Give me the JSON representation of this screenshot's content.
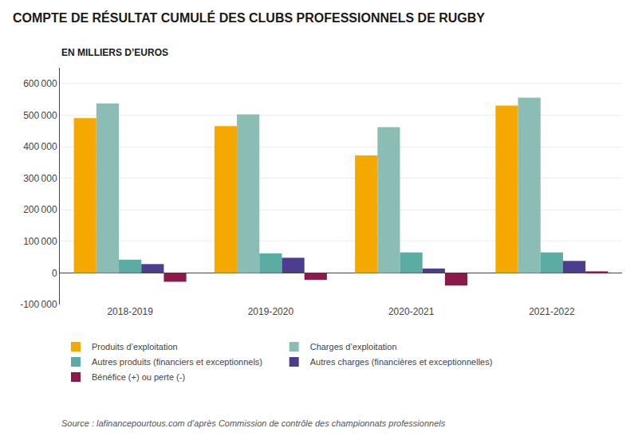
{
  "chart_data": {
    "type": "bar",
    "title": "COMPTE DE RÉSULTAT CUMULÉ DES CLUBS PROFESSIONNELS DE RUGBY",
    "subtitle": "EN MILLIERS D’EUROS",
    "annotations": [
      "Source : lafinancepourtous.com d’après Commission de contrôle des championnats professionnels"
    ],
    "categories": [
      "2018-2019",
      "2019-2020",
      "2020-2021",
      "2021-2022"
    ],
    "series": [
      {
        "name": "Produits d’exploitation",
        "color": "#F5A800",
        "values": [
          490000,
          465000,
          372000,
          530000
        ]
      },
      {
        "name": "Charges d’exploitation",
        "color": "#8CBDB5",
        "values": [
          537000,
          502000,
          462000,
          555000
        ]
      },
      {
        "name": "Autres produits (financiers et exceptionnels)",
        "color": "#5BADA3",
        "values": [
          42000,
          62000,
          65000,
          65000
        ]
      },
      {
        "name": "Autres charges (financières et exceptionnelles)",
        "color": "#4B3E8C",
        "values": [
          28000,
          48000,
          14000,
          38000
        ]
      },
      {
        "name": "Bénéfice (+) ou perte (-)",
        "color": "#8B1A4A",
        "values": [
          -28000,
          -22000,
          -40000,
          5000
        ]
      }
    ],
    "ylim": [
      -100000,
      650000
    ],
    "yticks": [
      {
        "value": -100000,
        "label": "-100 000"
      },
      0,
      {
        "value": 100000,
        "label": "100 000"
      },
      {
        "value": 200000,
        "label": "200 000"
      },
      {
        "value": 300000,
        "label": "300 000"
      },
      {
        "value": 400000,
        "label": "400 000"
      },
      {
        "value": 500000,
        "label": "500 000"
      },
      {
        "value": 600000,
        "label": "600 000"
      }
    ],
    "grid": true,
    "legend": "bottom"
  }
}
